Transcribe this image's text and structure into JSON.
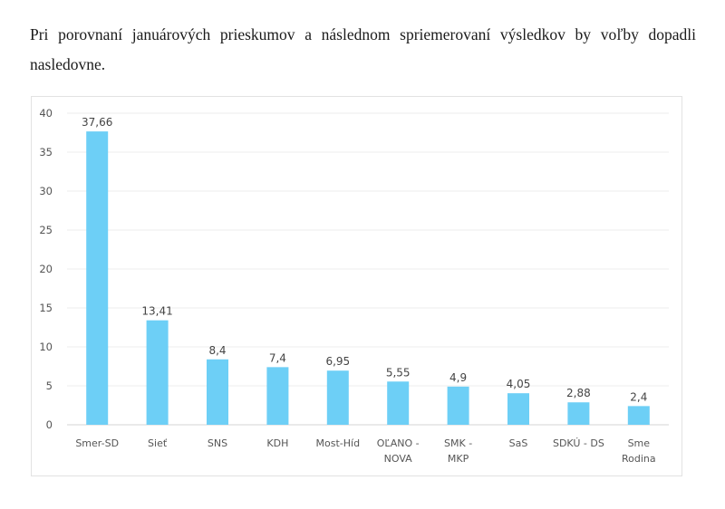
{
  "intro_text": "Pri porovnaní januárových prieskumov a následnom spriemerovaní výsledkov by voľby dopadli nasledovne.",
  "chart_data": {
    "type": "bar",
    "categories": [
      [
        "Smer-SD"
      ],
      [
        "Sieť"
      ],
      [
        "SNS"
      ],
      [
        "KDH"
      ],
      [
        "Most-Híd"
      ],
      [
        "OĽANO -",
        "NOVA"
      ],
      [
        "SMK -",
        "MKP"
      ],
      [
        "SaS"
      ],
      [
        "SDKÚ - DS"
      ],
      [
        "Sme",
        "Rodina"
      ]
    ],
    "values": [
      37.66,
      13.41,
      8.4,
      7.4,
      6.95,
      5.55,
      4.9,
      4.05,
      2.88,
      2.4
    ],
    "data_labels": [
      "37,66",
      "13,41",
      "8,4",
      "7,4",
      "6,95",
      "5,55",
      "4,9",
      "4,05",
      "2,88",
      "2,4"
    ],
    "ylim": [
      0,
      40
    ],
    "yticks": [
      0,
      5,
      10,
      15,
      20,
      25,
      30,
      35,
      40
    ],
    "grid": true,
    "bar_color": "#6dcff6",
    "grid_color": "#ececec",
    "title": "",
    "xlabel": "",
    "ylabel": ""
  }
}
